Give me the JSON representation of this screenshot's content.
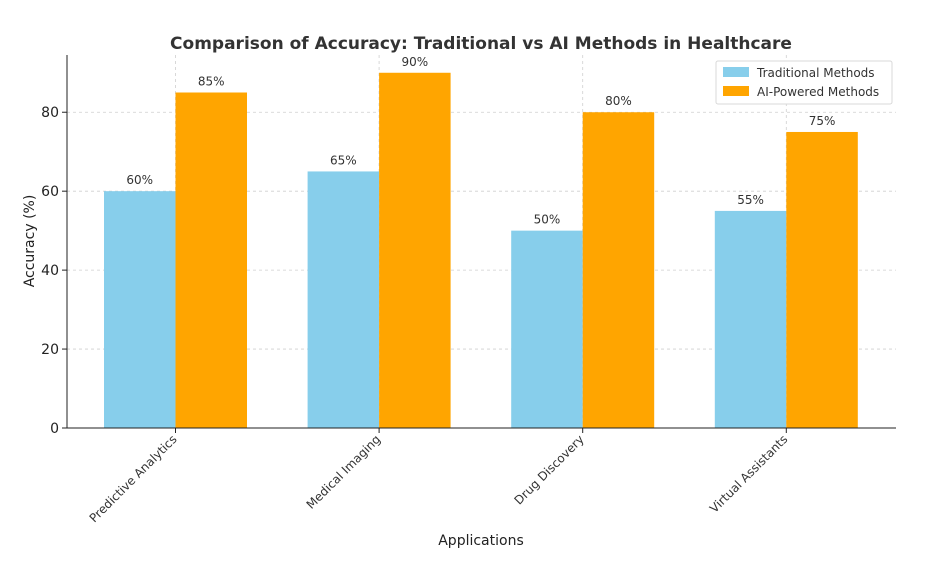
{
  "chart_data": {
    "type": "bar",
    "title": "Comparison of Accuracy: Traditional vs AI Methods in Healthcare",
    "xlabel": "Applications",
    "ylabel": "Accuracy (%)",
    "categories": [
      "Predictive Analytics",
      "Medical Imaging",
      "Drug Discovery",
      "Virtual Assistants"
    ],
    "series": [
      {
        "name": "Traditional Methods",
        "color": "#87CEEB",
        "values": [
          60,
          65,
          50,
          55
        ],
        "labels": [
          "60%",
          "65%",
          "50%",
          "55%"
        ]
      },
      {
        "name": "AI-Powered Methods",
        "color": "#FFA500",
        "values": [
          85,
          90,
          80,
          75
        ],
        "labels": [
          "85%",
          "90%",
          "80%",
          "75%"
        ]
      }
    ],
    "ylim": [
      0,
      94.5
    ],
    "yticks": [
      0,
      20,
      40,
      60,
      80
    ],
    "grid": true,
    "legend_position": "top-right"
  }
}
